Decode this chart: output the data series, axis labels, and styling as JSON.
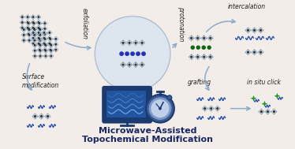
{
  "title_line1": "Microwave-Assisted",
  "title_line2": "Topochemical Modification",
  "labels": {
    "exfoliation": "exfoliation",
    "protonation": "protonation",
    "intercalation": "intercalation",
    "grafting": "grafting",
    "in_situ_click": "in situ click",
    "surface_mod": "Surface\nmodification"
  },
  "bg_color": "#f2ede8",
  "border_color": "#c8bfb0",
  "title_color": "#1a2660",
  "label_color": "#222222",
  "arrow_color": "#8aabcc",
  "perovskite_gray": "#7a8a96",
  "perovskite_light": "#b0bcc8",
  "perovskite_dark": "#2a3a48",
  "hub_fill": "#dde5ef",
  "hub_edge": "#b0bfd0",
  "screen_dark": "#1a3a70",
  "screen_mid": "#2255a0",
  "screen_light": "#3a70c0",
  "clock_outer": "#3a5a90",
  "clock_face": "#7a9acc",
  "clock_inner": "#c0d0e8",
  "molecule_blue": "#1a44aa",
  "molecule_green": "#229922",
  "dot_blue": "#2233bb",
  "dot_green": "#116611",
  "wave_colors": [
    "#3a6ab0",
    "#4a80c8",
    "#5a90d8",
    "#78aee8"
  ]
}
